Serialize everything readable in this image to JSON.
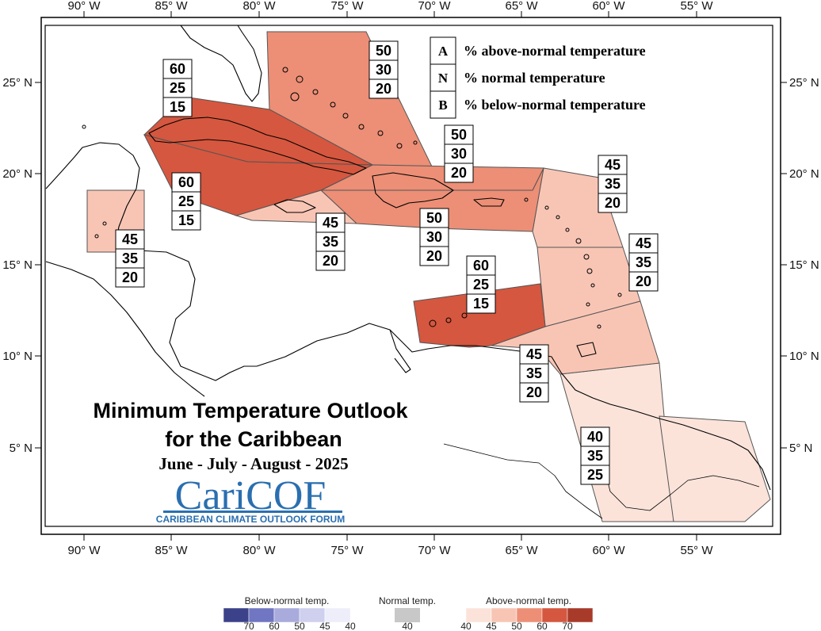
{
  "title": "Minimum Temperature Outlook",
  "title_line2": "for the Caribbean",
  "season": "June - July - August - 2025",
  "logo": {
    "word": "CariCOF",
    "tagline": "CARIBBEAN CLIMATE OUTLOOK FORUM"
  },
  "axes": {
    "lon_labels": [
      "90° W",
      "85° W",
      "80° W",
      "75° W",
      "70° W",
      "65° W",
      "60° W",
      "55° W"
    ],
    "lat_labels": [
      "25° N",
      "20° N",
      "15° N",
      "10° N",
      "5° N"
    ]
  },
  "key": [
    {
      "letter": "A",
      "text": "% above-normal temperature"
    },
    {
      "letter": "N",
      "text": "% normal temperature"
    },
    {
      "letter": "B",
      "text": "% below-normal temperature"
    }
  ],
  "colors": {
    "above_40": "#fbe3da",
    "above_45": "#f8c5b5",
    "above_50": "#ec8f76",
    "above_60": "#d5573f",
    "above_70": "#a83a2a",
    "normal_40": "#c8c8c8",
    "below_40": "#eeeefa",
    "below_45": "#cfd0ee",
    "below_50": "#a9abdc",
    "below_60": "#7176c2",
    "below_70": "#3b4289"
  },
  "regions": [
    {
      "id": "bahamas",
      "above": 50,
      "normal": 30,
      "below": 20,
      "color_key": "above_50"
    },
    {
      "id": "cuba",
      "above": 60,
      "normal": 25,
      "below": 15,
      "color_key": "above_60"
    },
    {
      "id": "cayman-western-cuba",
      "above": 60,
      "normal": 25,
      "below": 15,
      "color_key": "above_60"
    },
    {
      "id": "belize",
      "above": 45,
      "normal": 35,
      "below": 20,
      "color_key": "above_45"
    },
    {
      "id": "jamaica",
      "above": 45,
      "normal": 35,
      "below": 20,
      "color_key": "above_45"
    },
    {
      "id": "hispaniola-north",
      "above": 50,
      "normal": 30,
      "below": 20,
      "color_key": "above_50"
    },
    {
      "id": "hispaniola-puerto-rico",
      "above": 50,
      "normal": 30,
      "below": 20,
      "color_key": "above_50"
    },
    {
      "id": "leeward-islands",
      "above": 45,
      "normal": 35,
      "below": 20,
      "color_key": "above_45"
    },
    {
      "id": "windward-islands",
      "above": 45,
      "normal": 35,
      "below": 20,
      "color_key": "above_45"
    },
    {
      "id": "abc-islands",
      "above": 60,
      "normal": 25,
      "below": 15,
      "color_key": "above_60"
    },
    {
      "id": "trinidad-tobago",
      "above": 45,
      "normal": 35,
      "below": 20,
      "color_key": "above_45"
    },
    {
      "id": "guianas",
      "above": 40,
      "normal": 35,
      "below": 25,
      "color_key": "above_40"
    }
  ],
  "legend": {
    "below_title": "Below-normal temp.",
    "normal_title": "Normal temp.",
    "above_title": "Above-normal temp.",
    "below_ticks": [
      "70",
      "60",
      "50",
      "45",
      "40"
    ],
    "normal_ticks": [
      "40"
    ],
    "above_ticks": [
      "40",
      "45",
      "50",
      "60",
      "70"
    ]
  }
}
